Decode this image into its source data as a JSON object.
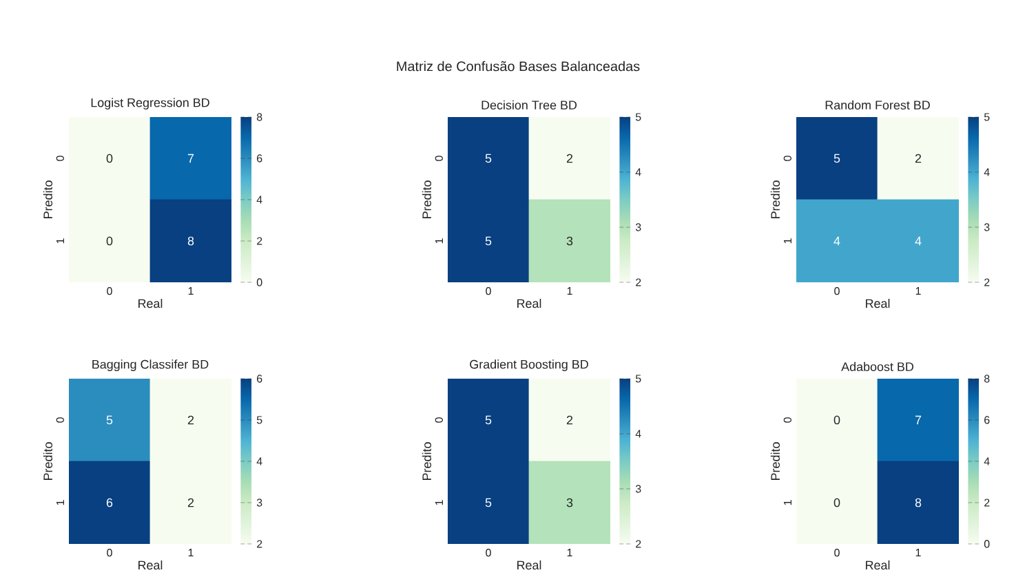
{
  "chart_data": [
    {
      "type": "other",
      "title": "Matriz de Confusão Bases Balanceadas"
    },
    {
      "type": "heatmap",
      "title": "Logist Regression BD",
      "xlabel": "Real",
      "ylabel": "Predito",
      "categories": [
        "0",
        "1"
      ],
      "y_categories": [
        "0",
        "1"
      ],
      "cells": [
        [
          0,
          7
        ],
        [
          0,
          8
        ]
      ],
      "clim": [
        0,
        8
      ],
      "cticks": [
        0,
        2,
        4,
        6,
        8
      ],
      "data_labels": true
    },
    {
      "type": "heatmap",
      "title": "Decision Tree BD",
      "xlabel": "Real",
      "ylabel": "Predito",
      "categories": [
        "0",
        "1"
      ],
      "y_categories": [
        "0",
        "1"
      ],
      "cells": [
        [
          5,
          2
        ],
        [
          5,
          3
        ]
      ],
      "clim": [
        2,
        5
      ],
      "cticks": [
        2,
        3,
        4,
        5
      ],
      "data_labels": true
    },
    {
      "type": "heatmap",
      "title": "Random Forest BD",
      "xlabel": "Real",
      "ylabel": "Predito",
      "categories": [
        "0",
        "1"
      ],
      "y_categories": [
        "0",
        "1"
      ],
      "cells": [
        [
          5,
          2
        ],
        [
          4,
          4
        ]
      ],
      "clim": [
        2,
        5
      ],
      "cticks": [
        2,
        3,
        4,
        5
      ],
      "data_labels": true
    },
    {
      "type": "heatmap",
      "title": "Bagging Classifer BD",
      "xlabel": "Real",
      "ylabel": "Predito",
      "categories": [
        "0",
        "1"
      ],
      "y_categories": [
        "0",
        "1"
      ],
      "cells": [
        [
          5,
          2
        ],
        [
          6,
          2
        ]
      ],
      "clim": [
        2,
        6
      ],
      "cticks": [
        2,
        3,
        4,
        5,
        6
      ],
      "data_labels": true
    },
    {
      "type": "heatmap",
      "title": "Gradient Boosting BD",
      "xlabel": "Real",
      "ylabel": "Predito",
      "categories": [
        "0",
        "1"
      ],
      "y_categories": [
        "0",
        "1"
      ],
      "cells": [
        [
          5,
          2
        ],
        [
          5,
          3
        ]
      ],
      "clim": [
        2,
        5
      ],
      "cticks": [
        2,
        3,
        4,
        5
      ],
      "data_labels": true
    },
    {
      "type": "heatmap",
      "title": "Adaboost BD",
      "xlabel": "Real",
      "ylabel": "Predito",
      "categories": [
        "0",
        "1"
      ],
      "y_categories": [
        "0",
        "1"
      ],
      "cells": [
        [
          0,
          7
        ],
        [
          0,
          8
        ]
      ],
      "clim": [
        0,
        8
      ],
      "cticks": [
        0,
        2,
        4,
        6,
        8
      ],
      "data_labels": true
    }
  ]
}
